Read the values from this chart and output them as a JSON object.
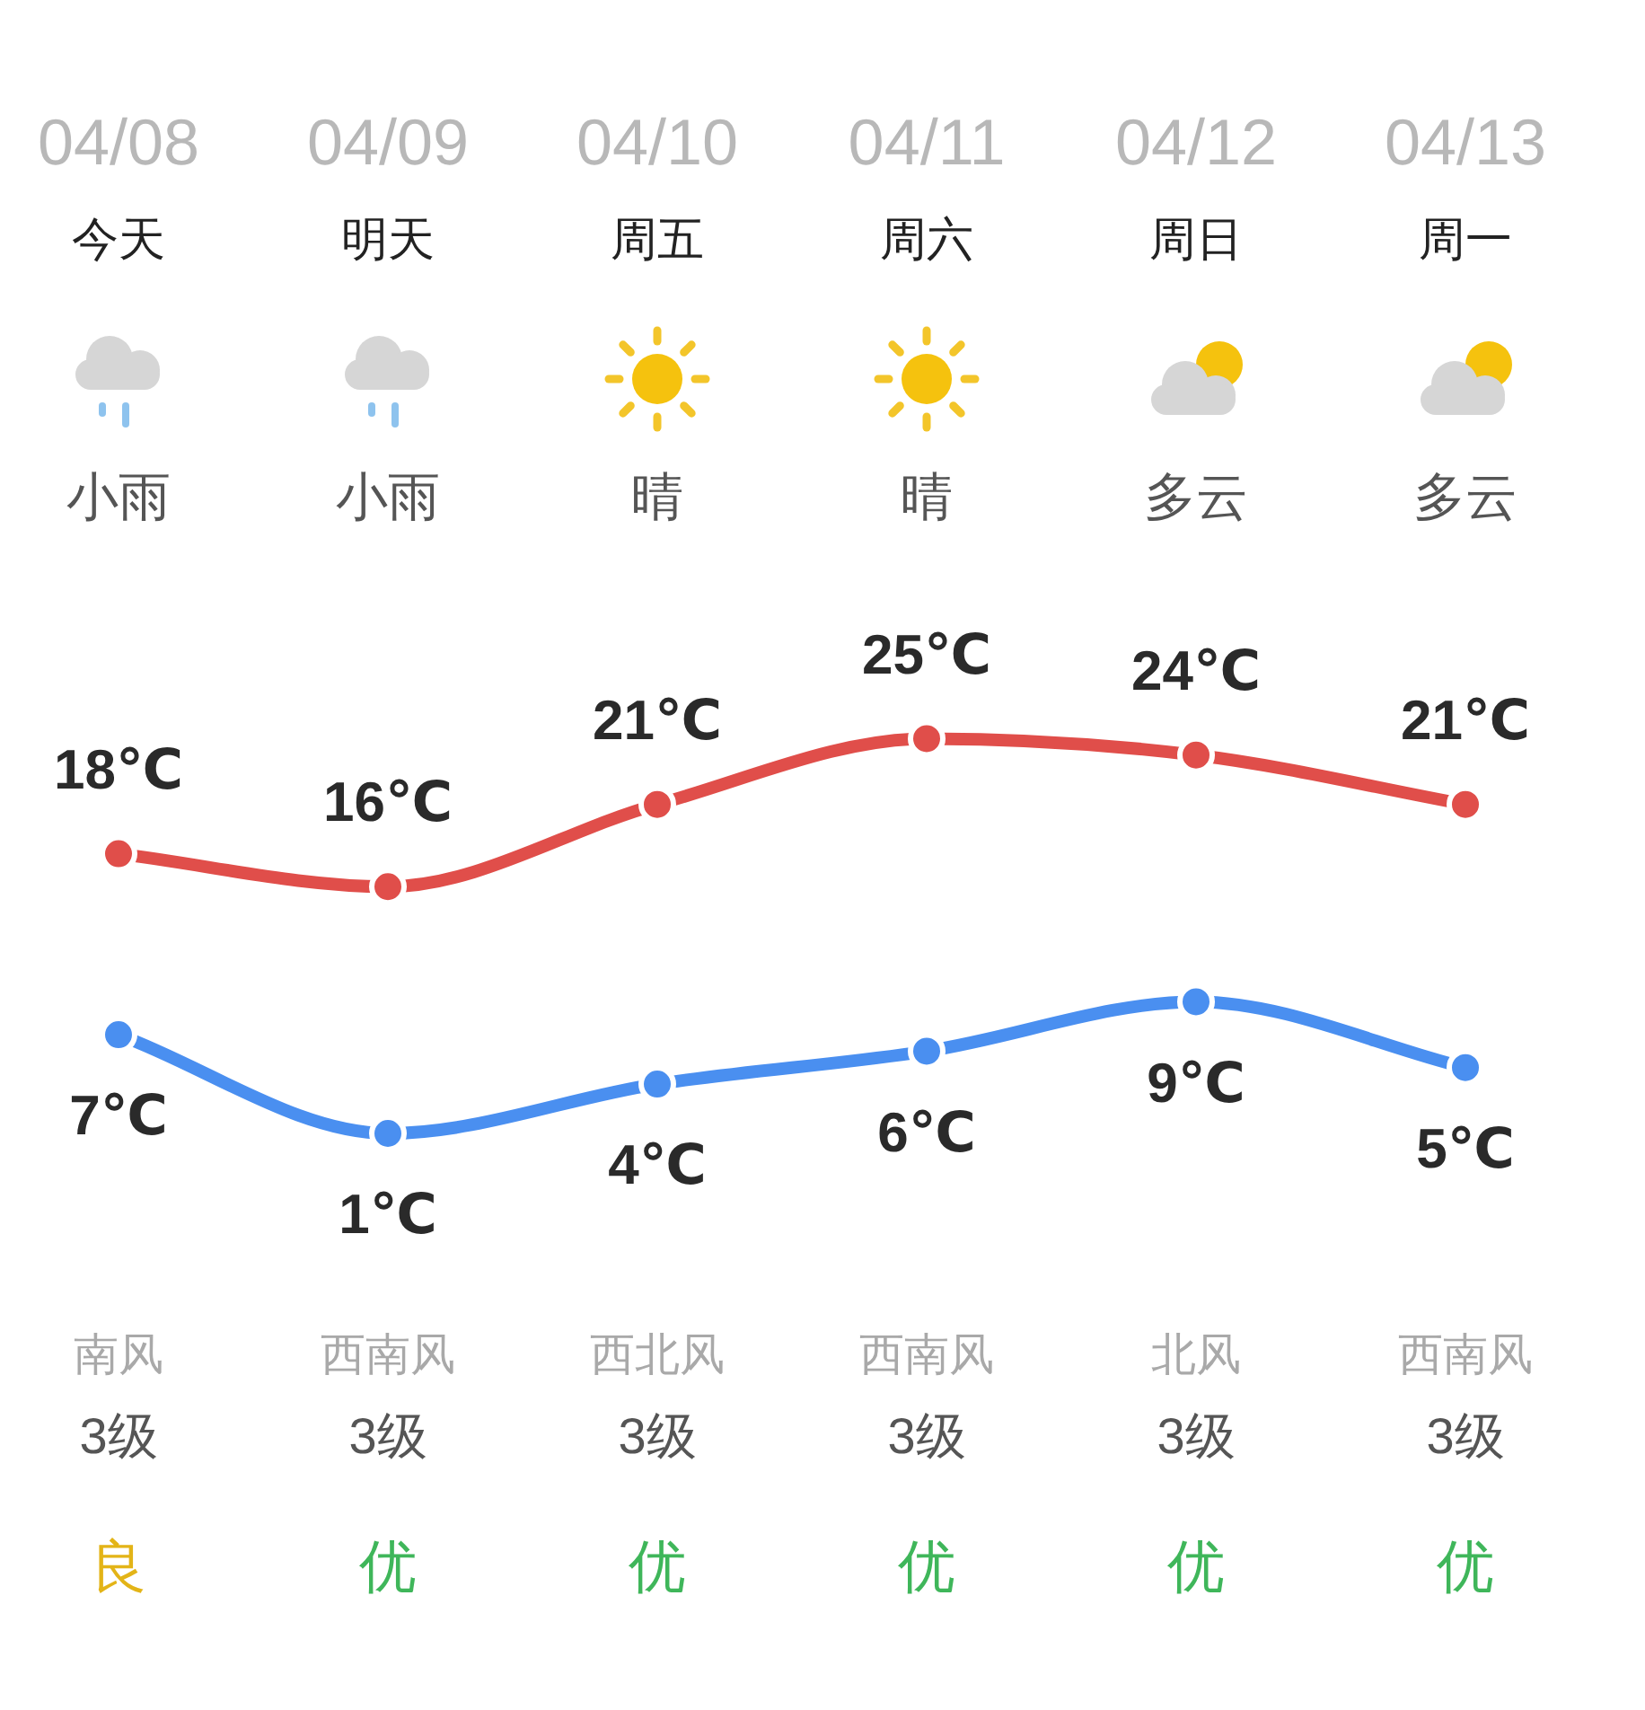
{
  "chart_data": {
    "type": "line",
    "categories": [
      "04/08",
      "04/09",
      "04/10",
      "04/11",
      "04/12",
      "04/13"
    ],
    "series": [
      {
        "color": "#e04e4a",
        "values": [
          18,
          16,
          21,
          25,
          24,
          21
        ],
        "value_labels": [
          "18℃",
          "16℃",
          "21℃",
          "25℃",
          "24℃",
          "21℃"
        ]
      },
      {
        "color": "#4a8ff0",
        "values": [
          7,
          1,
          4,
          6,
          9,
          5
        ],
        "value_labels": [
          "7℃",
          "1℃",
          "4℃",
          "6℃",
          "9℃",
          "5℃"
        ]
      }
    ],
    "marker": "circle",
    "tick_labels": "x",
    "annotations": [
      "今天",
      "明天",
      "周五",
      "周六",
      "周日",
      "周一",
      "小雨",
      "小雨",
      "晴",
      "晴",
      "多云",
      "多云",
      "南风",
      "西南风",
      "西北风",
      "西南风",
      "北风",
      "西南风",
      "3级",
      "3级",
      "3级",
      "3级",
      "3级",
      "3级",
      "良",
      "优",
      "优",
      "优",
      "优",
      "优"
    ]
  }
}
